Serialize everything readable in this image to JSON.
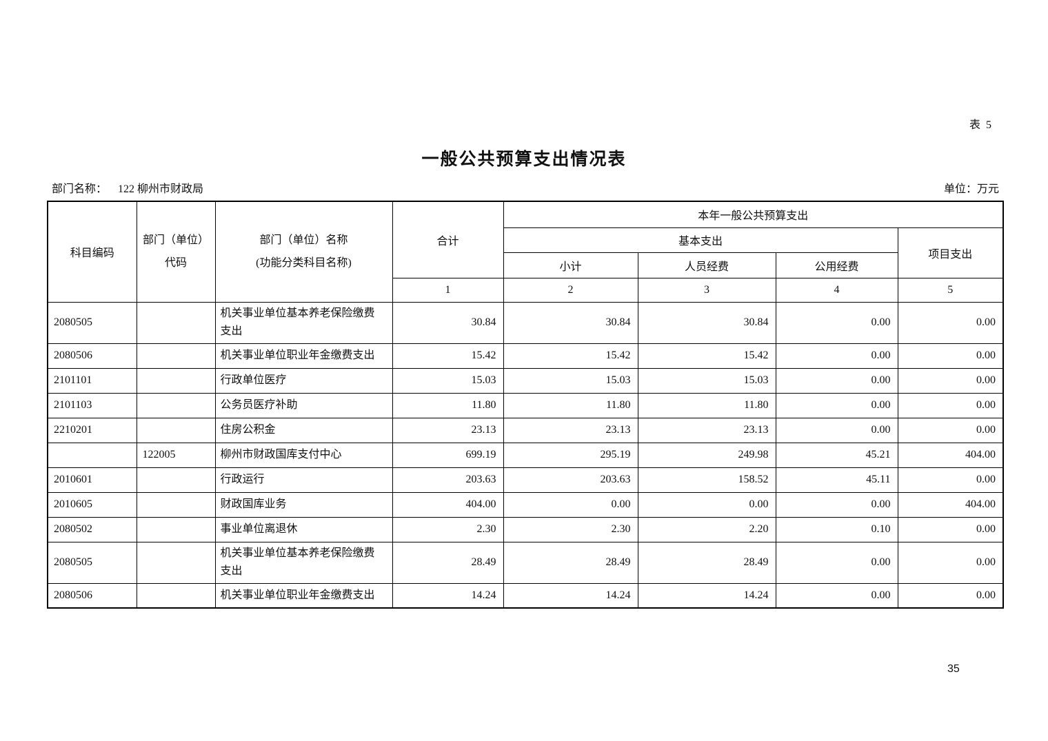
{
  "page": {
    "table_label": "表 5",
    "title": "一般公共预算支出情况表",
    "department_label": "部门名称：",
    "department_value": "122 柳州市财政局",
    "unit_label": "单位：万元",
    "page_number": "35"
  },
  "table": {
    "header": {
      "subject_code": "科目编码",
      "dept_code_line1": "部门（单位）",
      "dept_code_line2": "代码",
      "dept_name_line1": "部门（单位）名称",
      "dept_name_line2": "(功能分类科目名称)",
      "total": "合计",
      "current_year_budget": "本年一般公共预算支出",
      "basic_expenditure": "基本支出",
      "subtotal": "小计",
      "personnel_funds": "人员经费",
      "public_funds": "公用经费",
      "project_expenditure": "项目支出",
      "column_numbers": [
        "1",
        "2",
        "3",
        "4",
        "5"
      ]
    },
    "rows": [
      {
        "code": "2080505",
        "dept_code": "",
        "name": "机关事业单位基本养老保险缴费支出",
        "total": "30.84",
        "subtotal": "30.84",
        "personnel": "30.84",
        "public": "0.00",
        "project": "0.00",
        "tall": true
      },
      {
        "code": "2080506",
        "dept_code": "",
        "name": "机关事业单位职业年金缴费支出",
        "total": "15.42",
        "subtotal": "15.42",
        "personnel": "15.42",
        "public": "0.00",
        "project": "0.00",
        "tall": false
      },
      {
        "code": "2101101",
        "dept_code": "",
        "name": "行政单位医疗",
        "total": "15.03",
        "subtotal": "15.03",
        "personnel": "15.03",
        "public": "0.00",
        "project": "0.00",
        "tall": false
      },
      {
        "code": "2101103",
        "dept_code": "",
        "name": "公务员医疗补助",
        "total": "11.80",
        "subtotal": "11.80",
        "personnel": "11.80",
        "public": "0.00",
        "project": "0.00",
        "tall": false
      },
      {
        "code": "2210201",
        "dept_code": "",
        "name": "住房公积金",
        "total": "23.13",
        "subtotal": "23.13",
        "personnel": "23.13",
        "public": "0.00",
        "project": "0.00",
        "tall": false
      },
      {
        "code": "",
        "dept_code": "122005",
        "name": "柳州市财政国库支付中心",
        "total": "699.19",
        "subtotal": "295.19",
        "personnel": "249.98",
        "public": "45.21",
        "project": "404.00",
        "tall": false
      },
      {
        "code": "2010601",
        "dept_code": "",
        "name": "行政运行",
        "total": "203.63",
        "subtotal": "203.63",
        "personnel": "158.52",
        "public": "45.11",
        "project": "0.00",
        "tall": false
      },
      {
        "code": "2010605",
        "dept_code": "",
        "name": "财政国库业务",
        "total": "404.00",
        "subtotal": "0.00",
        "personnel": "0.00",
        "public": "0.00",
        "project": "404.00",
        "tall": false
      },
      {
        "code": "2080502",
        "dept_code": "",
        "name": "事业单位离退休",
        "total": "2.30",
        "subtotal": "2.30",
        "personnel": "2.20",
        "public": "0.10",
        "project": "0.00",
        "tall": false
      },
      {
        "code": "2080505",
        "dept_code": "",
        "name": "机关事业单位基本养老保险缴费支出",
        "total": "28.49",
        "subtotal": "28.49",
        "personnel": "28.49",
        "public": "0.00",
        "project": "0.00",
        "tall": true
      },
      {
        "code": "2080506",
        "dept_code": "",
        "name": "机关事业单位职业年金缴费支出",
        "total": "14.24",
        "subtotal": "14.24",
        "personnel": "14.24",
        "public": "0.00",
        "project": "0.00",
        "tall": false
      }
    ]
  }
}
